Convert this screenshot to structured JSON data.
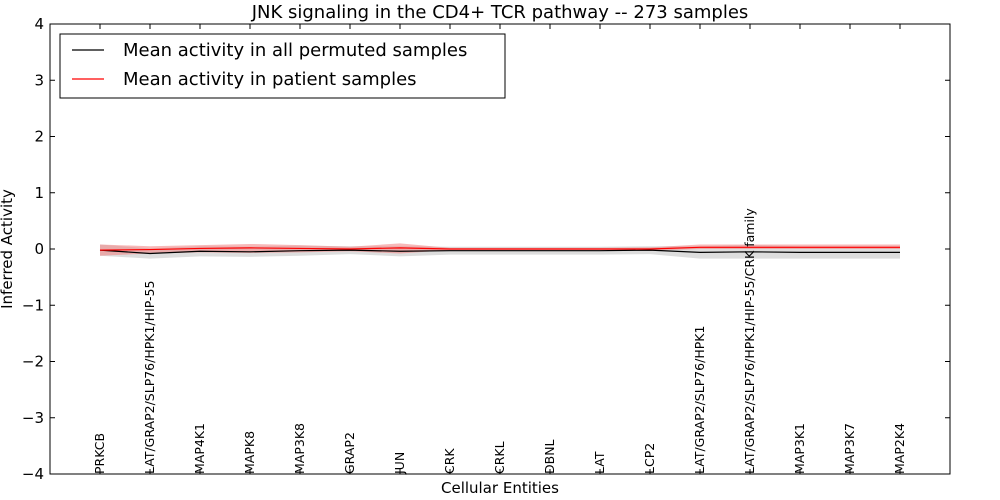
{
  "chart_data": {
    "type": "line",
    "title": "JNK signaling in the CD4+ TCR pathway -- 273 samples",
    "xlabel": "Cellular Entities",
    "ylabel": "Inferred Activity",
    "ylim": [
      -4,
      4
    ],
    "yticks": [
      -4,
      -3,
      -2,
      -1,
      0,
      1,
      2,
      3,
      4
    ],
    "ytick_labels": [
      "−4",
      "−3",
      "−2",
      "−1",
      "0",
      "1",
      "2",
      "3",
      "4"
    ],
    "legend_position": "top-left",
    "categories": [
      "PRKCB",
      "LAT/GRAP2/SLP76/HPK1/HIP-55",
      "MAP4K1",
      "MAPK8",
      "MAP3K8",
      "GRAP2",
      "JUN",
      "CRK",
      "CRKL",
      "DBNL",
      "LAT",
      "LCP2",
      "LAT/GRAP2/SLP76/HPK1",
      "LAT/GRAP2/SLP76/HPK1/HIP-55/CRK family",
      "MAP3K1",
      "MAP3K7",
      "MAP2K4"
    ],
    "series": [
      {
        "name": "Mean activity in all permuted samples",
        "color": "#000000",
        "band_color": "#bbbbbb",
        "values": [
          -0.02,
          -0.08,
          -0.04,
          -0.05,
          -0.03,
          -0.02,
          -0.04,
          -0.03,
          -0.03,
          -0.03,
          -0.03,
          -0.02,
          -0.06,
          -0.05,
          -0.06,
          -0.06,
          -0.06
        ],
        "lower": [
          -0.12,
          -0.17,
          -0.13,
          -0.14,
          -0.12,
          -0.09,
          -0.13,
          -0.1,
          -0.1,
          -0.1,
          -0.1,
          -0.09,
          -0.17,
          -0.17,
          -0.17,
          -0.17,
          -0.17
        ],
        "upper": [
          0.08,
          0.01,
          0.05,
          0.04,
          0.06,
          0.05,
          0.05,
          0.04,
          0.04,
          0.04,
          0.04,
          0.05,
          0.05,
          0.07,
          0.05,
          0.05,
          0.05
        ]
      },
      {
        "name": "Mean activity in patient samples",
        "color": "#ff0000",
        "band_color": "#f08080",
        "values": [
          -0.02,
          -0.01,
          0.01,
          0.02,
          0.01,
          0.0,
          0.02,
          0.0,
          0.0,
          0.0,
          0.0,
          0.0,
          0.03,
          0.03,
          0.03,
          0.03,
          0.03
        ],
        "lower": [
          -0.12,
          -0.08,
          -0.06,
          -0.07,
          -0.06,
          -0.04,
          -0.08,
          -0.02,
          -0.02,
          -0.02,
          -0.02,
          -0.03,
          0.0,
          0.0,
          0.0,
          0.0,
          0.0
        ],
        "upper": [
          0.08,
          0.05,
          0.07,
          0.09,
          0.07,
          0.04,
          0.1,
          0.02,
          0.02,
          0.02,
          0.02,
          0.03,
          0.08,
          0.08,
          0.08,
          0.08,
          0.08
        ]
      }
    ]
  }
}
